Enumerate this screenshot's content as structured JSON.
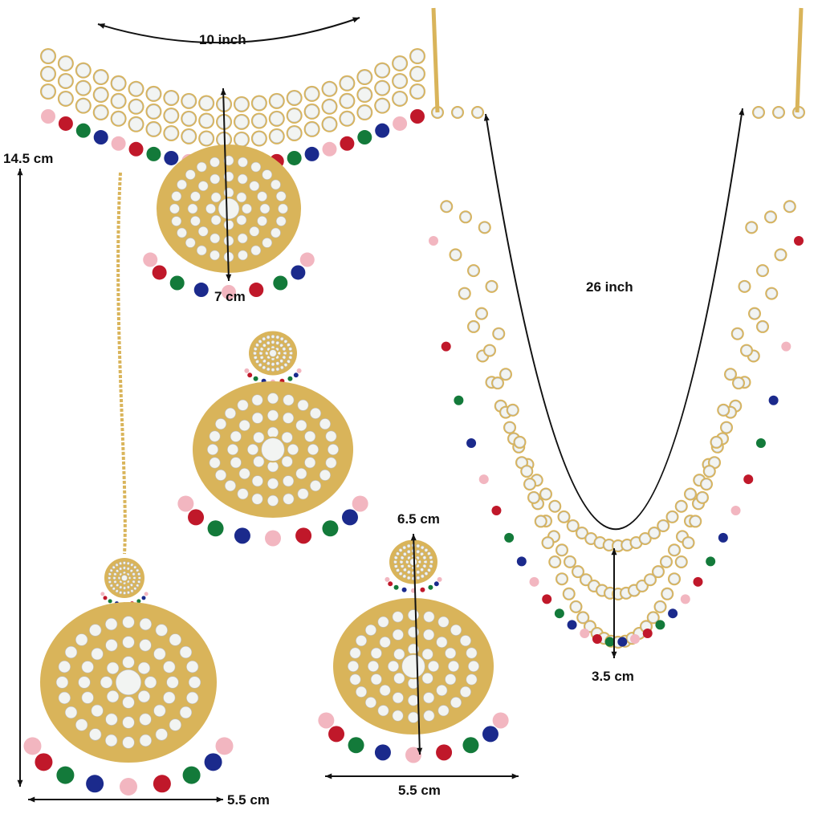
{
  "labels": {
    "choker_width": "10 inch",
    "maang_tikka_length": "14.5 cm",
    "choker_pendant_height": "7 cm",
    "long_necklace_length": "26 inch",
    "earring_height": "6.5 cm",
    "long_necklace_drop": "3.5 cm",
    "maang_tikka_width": "5.5 cm",
    "earring_width": "5.5 cm"
  },
  "colors": {
    "gold": "#d9b45a",
    "kundan": "#f2f4f2",
    "bead_red": "#c0182a",
    "bead_green": "#137a3a",
    "bead_blue": "#1b2a8c",
    "bead_pink": "#f2b6c0",
    "arrow": "#111111"
  }
}
